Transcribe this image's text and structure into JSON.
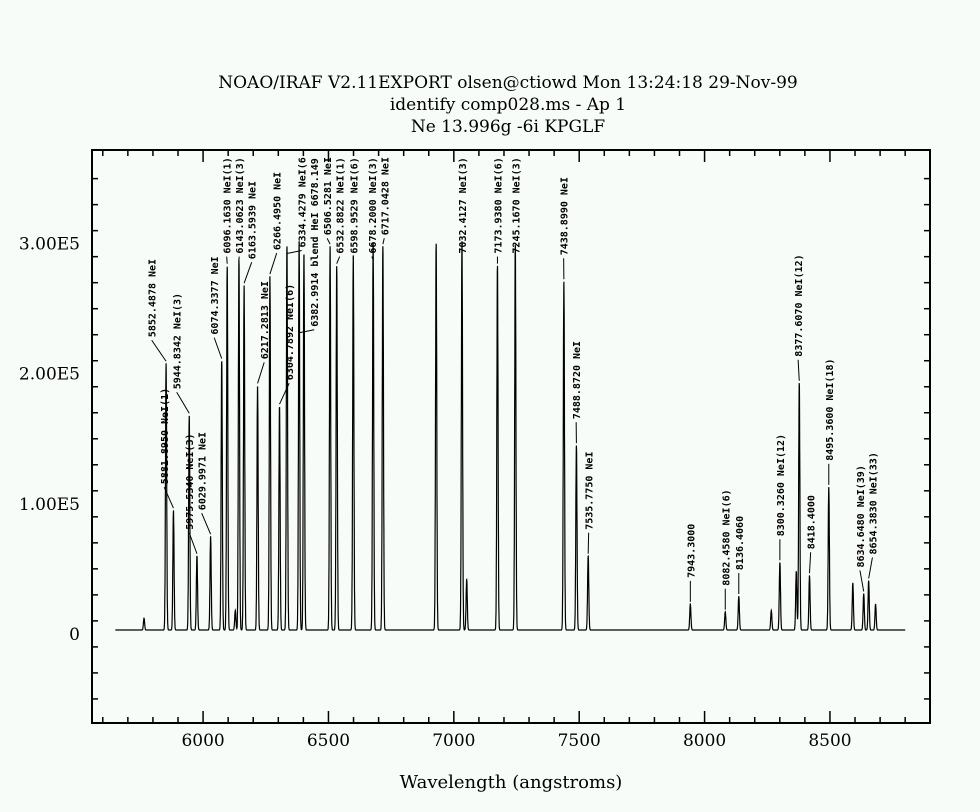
{
  "chart_data": {
    "type": "line",
    "title_lines": [
      "NOAO/IRAF V2.11EXPORT olsen@ctiowd Mon 13:24:18 29-Nov-99",
      "identify comp028.ms - Ap 1",
      "Ne 13.996g -6i KPGLF"
    ],
    "xlabel": "Wavelength (angstroms)",
    "ylabel": "",
    "xlim": [
      5557,
      8899
    ],
    "ylim": [
      -68500,
      372000
    ],
    "x_ticks": [
      6000,
      6500,
      7000,
      7500,
      8000,
      8500
    ],
    "x_tick_labels": [
      "6000",
      "6500",
      "7000",
      "7500",
      "8000",
      "8500"
    ],
    "y_ticks": [
      0,
      100000,
      200000,
      300000
    ],
    "y_tick_labels": [
      "0",
      "1.00E5",
      "2.00E5",
      "3.00E5"
    ],
    "grid": false,
    "baseline": 3000,
    "lines": [
      {
        "wavelength": 5852.4878,
        "intensity": 205000,
        "label": "5852.4878 NeI"
      },
      {
        "wavelength": 5881.895,
        "intensity": 92000,
        "label": "5881.8950 NeI(1)"
      },
      {
        "wavelength": 5944.8342,
        "intensity": 165000,
        "label": "5944.8342 NeI(3)"
      },
      {
        "wavelength": 5975.534,
        "intensity": 57000,
        "label": "5975.5340 NeI(3)"
      },
      {
        "wavelength": 6029.9971,
        "intensity": 72000,
        "label": "6029.9971 NeI"
      },
      {
        "wavelength": 6074.3377,
        "intensity": 207000,
        "label": "6074.3377 NeI"
      },
      {
        "wavelength": 6096.163,
        "intensity": 280000,
        "label": "6096.1630 NeI(1)"
      },
      {
        "wavelength": 6143.0623,
        "intensity": 285000,
        "label": "6143.0623 NeI(3)"
      },
      {
        "wavelength": 6163.5939,
        "intensity": 265000,
        "label": "6163.5939 NeI"
      },
      {
        "wavelength": 6217.2813,
        "intensity": 188000,
        "label": "6217.2813 NeI"
      },
      {
        "wavelength": 6266.495,
        "intensity": 272000,
        "label": "6266.4950 NeI"
      },
      {
        "wavelength": 6304.7892,
        "intensity": 172000,
        "label": "6304.7892 NeI(6)"
      },
      {
        "wavelength": 6334.4279,
        "intensity": 295000,
        "label": "6334.4279 NeI(6"
      },
      {
        "wavelength": 6382.9914,
        "intensity": 299000,
        "label": "6382.9914 blend HeI 6678.149"
      },
      {
        "wavelength": 6402.246,
        "intensity": 290000,
        "label": ""
      },
      {
        "wavelength": 6506.5281,
        "intensity": 295000,
        "label": "6506.5281 NeI"
      },
      {
        "wavelength": 6532.8822,
        "intensity": 280000,
        "label": "6532.8822 NeI(1)"
      },
      {
        "wavelength": 6598.9529,
        "intensity": 288000,
        "label": "6598.9529 NeI(6)"
      },
      {
        "wavelength": 6678.2,
        "intensity": 299000,
        "label": "6678.2000 NeI(3)"
      },
      {
        "wavelength": 6717.0428,
        "intensity": 295000,
        "label": "6717.0428 NeI"
      },
      {
        "wavelength": 6929.47,
        "intensity": 297000,
        "label": ""
      },
      {
        "wavelength": 7032.4127,
        "intensity": 299000,
        "label": "7032.4127 NeI(3)"
      },
      {
        "wavelength": 7051.29,
        "intensity": 39000,
        "label": ""
      },
      {
        "wavelength": 7173.938,
        "intensity": 280000,
        "label": "7173.9380 NeI(6)"
      },
      {
        "wavelength": 7245.167,
        "intensity": 297000,
        "label": "7245.1670 NeI(3)"
      },
      {
        "wavelength": 7438.899,
        "intensity": 268000,
        "label": "7438.8990 NeI"
      },
      {
        "wavelength": 7488.872,
        "intensity": 142000,
        "label": "7488.8720 NeI"
      },
      {
        "wavelength": 7535.775,
        "intensity": 57000,
        "label": "7535.7750 NeI"
      },
      {
        "wavelength": 7943.18,
        "intensity": 20000,
        "label": "7943.3000"
      },
      {
        "wavelength": 8082.458,
        "intensity": 14000,
        "label": "8082.4580 NeI(6)"
      },
      {
        "wavelength": 8136.406,
        "intensity": 26000,
        "label": "8136.4060"
      },
      {
        "wavelength": 8300.326,
        "intensity": 52000,
        "label": "8300.3260 NeI(12)"
      },
      {
        "wavelength": 8377.607,
        "intensity": 190000,
        "label": "8377.6070 NeI(12)"
      },
      {
        "wavelength": 8418.427,
        "intensity": 42000,
        "label": "8418.4000"
      },
      {
        "wavelength": 8495.36,
        "intensity": 110000,
        "label": "8495.3600 NeI(18)"
      },
      {
        "wavelength": 8591.26,
        "intensity": 36000,
        "label": ""
      },
      {
        "wavelength": 8634.648,
        "intensity": 28000,
        "label": "8634.6480 NeI(39)"
      },
      {
        "wavelength": 8654.383,
        "intensity": 38000,
        "label": "8654.3830 NeI(33)"
      },
      {
        "wavelength": 8681.92,
        "intensity": 20000,
        "label": ""
      },
      {
        "wavelength": 5764.419,
        "intensity": 9000,
        "label": ""
      },
      {
        "wavelength": 6128.45,
        "intensity": 15000,
        "label": ""
      },
      {
        "wavelength": 8266.08,
        "intensity": 15000,
        "label": ""
      },
      {
        "wavelength": 8365.75,
        "intensity": 45000,
        "label": ""
      }
    ]
  }
}
